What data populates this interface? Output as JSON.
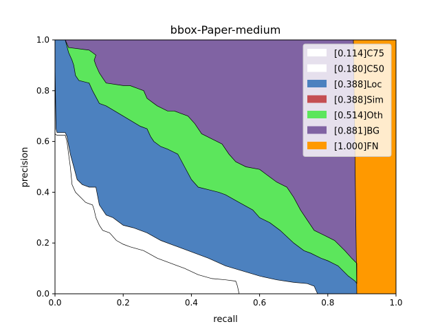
{
  "chart_data": {
    "type": "area",
    "title": "bbox-Paper-medium",
    "xlabel": "recall",
    "ylabel": "precision",
    "xlim": [
      0,
      1
    ],
    "ylim": [
      0,
      1
    ],
    "x_ticks": [
      "0.0",
      "0.2",
      "0.4",
      "0.6",
      "0.8",
      "1.0"
    ],
    "y_ticks": [
      "0.0",
      "0.2",
      "0.4",
      "0.6",
      "0.8",
      "1.0"
    ],
    "grid": false,
    "legend_placement": "top-right",
    "series": [
      {
        "name": "[0.114]C75",
        "color": "#ffffff",
        "points": [
          [
            0,
            0.63
          ],
          [
            0.005,
            0.625
          ],
          [
            0.03,
            0.625
          ],
          [
            0.035,
            0.6
          ],
          [
            0.04,
            0.55
          ],
          [
            0.045,
            0.5
          ],
          [
            0.05,
            0.43
          ],
          [
            0.06,
            0.4
          ],
          [
            0.075,
            0.38
          ],
          [
            0.09,
            0.36
          ],
          [
            0.11,
            0.35
          ],
          [
            0.115,
            0.33
          ],
          [
            0.12,
            0.3
          ],
          [
            0.13,
            0.27
          ],
          [
            0.14,
            0.25
          ],
          [
            0.16,
            0.24
          ],
          [
            0.18,
            0.21
          ],
          [
            0.2,
            0.195
          ],
          [
            0.22,
            0.185
          ],
          [
            0.26,
            0.17
          ],
          [
            0.3,
            0.14
          ],
          [
            0.34,
            0.12
          ],
          [
            0.38,
            0.1
          ],
          [
            0.42,
            0.075
          ],
          [
            0.46,
            0.06
          ],
          [
            0.5,
            0.055
          ],
          [
            0.53,
            0.05
          ],
          [
            0.535,
            0.03
          ],
          [
            0.54,
            0
          ]
        ]
      },
      {
        "name": "[0.180]C50",
        "color": "#ffffff",
        "points": [
          [
            0,
            0.9
          ],
          [
            0.003,
            0.65
          ],
          [
            0.006,
            0.635
          ],
          [
            0.03,
            0.635
          ],
          [
            0.035,
            0.62
          ],
          [
            0.045,
            0.55
          ],
          [
            0.055,
            0.5
          ],
          [
            0.065,
            0.45
          ],
          [
            0.08,
            0.43
          ],
          [
            0.1,
            0.42
          ],
          [
            0.12,
            0.42
          ],
          [
            0.13,
            0.35
          ],
          [
            0.15,
            0.31
          ],
          [
            0.17,
            0.3
          ],
          [
            0.2,
            0.27
          ],
          [
            0.23,
            0.26
          ],
          [
            0.27,
            0.24
          ],
          [
            0.31,
            0.21
          ],
          [
            0.35,
            0.19
          ],
          [
            0.4,
            0.165
          ],
          [
            0.45,
            0.14
          ],
          [
            0.5,
            0.11
          ],
          [
            0.55,
            0.09
          ],
          [
            0.6,
            0.07
          ],
          [
            0.65,
            0.055
          ],
          [
            0.7,
            0.045
          ],
          [
            0.74,
            0.04
          ],
          [
            0.76,
            0.03
          ],
          [
            0.765,
            0.015
          ],
          [
            0.77,
            0
          ]
        ]
      },
      {
        "name": "[0.388]Loc",
        "color": "#4c81bf",
        "points": [
          [
            0.03,
            1
          ],
          [
            0.04,
            0.95
          ],
          [
            0.05,
            0.92
          ],
          [
            0.055,
            0.9
          ],
          [
            0.06,
            0.86
          ],
          [
            0.07,
            0.84
          ],
          [
            0.1,
            0.83
          ],
          [
            0.11,
            0.8
          ],
          [
            0.13,
            0.75
          ],
          [
            0.15,
            0.74
          ],
          [
            0.2,
            0.7
          ],
          [
            0.25,
            0.66
          ],
          [
            0.27,
            0.65
          ],
          [
            0.28,
            0.62
          ],
          [
            0.29,
            0.6
          ],
          [
            0.31,
            0.58
          ],
          [
            0.33,
            0.57
          ],
          [
            0.36,
            0.55
          ],
          [
            0.38,
            0.5
          ],
          [
            0.4,
            0.45
          ],
          [
            0.42,
            0.42
          ],
          [
            0.45,
            0.41
          ],
          [
            0.48,
            0.4
          ],
          [
            0.5,
            0.39
          ],
          [
            0.54,
            0.36
          ],
          [
            0.58,
            0.33
          ],
          [
            0.6,
            0.3
          ],
          [
            0.63,
            0.28
          ],
          [
            0.66,
            0.25
          ],
          [
            0.7,
            0.2
          ],
          [
            0.73,
            0.17
          ],
          [
            0.75,
            0.16
          ],
          [
            0.78,
            0.14
          ],
          [
            0.8,
            0.13
          ],
          [
            0.83,
            0.11
          ],
          [
            0.86,
            0.07
          ],
          [
            0.88,
            0.05
          ],
          [
            0.885,
            0.04
          ]
        ]
      },
      {
        "name": "[0.388]Sim",
        "color": "#c44e52",
        "points": [
          [
            0.03,
            1
          ],
          [
            0.885,
            0.04
          ]
        ]
      },
      {
        "name": "[0.514]Oth",
        "color": "#5ce65c",
        "points": [
          [
            0.03,
            1
          ],
          [
            0.04,
            0.97
          ],
          [
            0.1,
            0.96
          ],
          [
            0.11,
            0.95
          ],
          [
            0.12,
            0.94
          ],
          [
            0.115,
            0.92
          ],
          [
            0.12,
            0.9
          ],
          [
            0.13,
            0.87
          ],
          [
            0.14,
            0.85
          ],
          [
            0.15,
            0.83
          ],
          [
            0.2,
            0.82
          ],
          [
            0.22,
            0.82
          ],
          [
            0.24,
            0.81
          ],
          [
            0.26,
            0.8
          ],
          [
            0.27,
            0.77
          ],
          [
            0.29,
            0.75
          ],
          [
            0.3,
            0.74
          ],
          [
            0.33,
            0.72
          ],
          [
            0.35,
            0.72
          ],
          [
            0.39,
            0.7
          ],
          [
            0.41,
            0.67
          ],
          [
            0.43,
            0.63
          ],
          [
            0.46,
            0.61
          ],
          [
            0.49,
            0.59
          ],
          [
            0.51,
            0.55
          ],
          [
            0.53,
            0.52
          ],
          [
            0.56,
            0.5
          ],
          [
            0.6,
            0.49
          ],
          [
            0.62,
            0.47
          ],
          [
            0.65,
            0.44
          ],
          [
            0.68,
            0.42
          ],
          [
            0.7,
            0.38
          ],
          [
            0.72,
            0.33
          ],
          [
            0.74,
            0.29
          ],
          [
            0.76,
            0.25
          ],
          [
            0.79,
            0.23
          ],
          [
            0.82,
            0.21
          ],
          [
            0.85,
            0.17
          ],
          [
            0.87,
            0.14
          ],
          [
            0.885,
            0.12
          ],
          [
            0.885,
            0.04
          ]
        ]
      },
      {
        "name": "[0.881]BG",
        "color": "#8063a3",
        "points": [
          [
            0.03,
            1
          ],
          [
            0.885,
            1
          ],
          [
            0.885,
            0.04
          ]
        ]
      },
      {
        "name": "[1.000]FN",
        "color": "#ff9900",
        "points": [
          [
            0.875,
            1
          ],
          [
            1,
            1
          ],
          [
            1,
            0
          ],
          [
            0.885,
            0
          ]
        ]
      }
    ]
  }
}
